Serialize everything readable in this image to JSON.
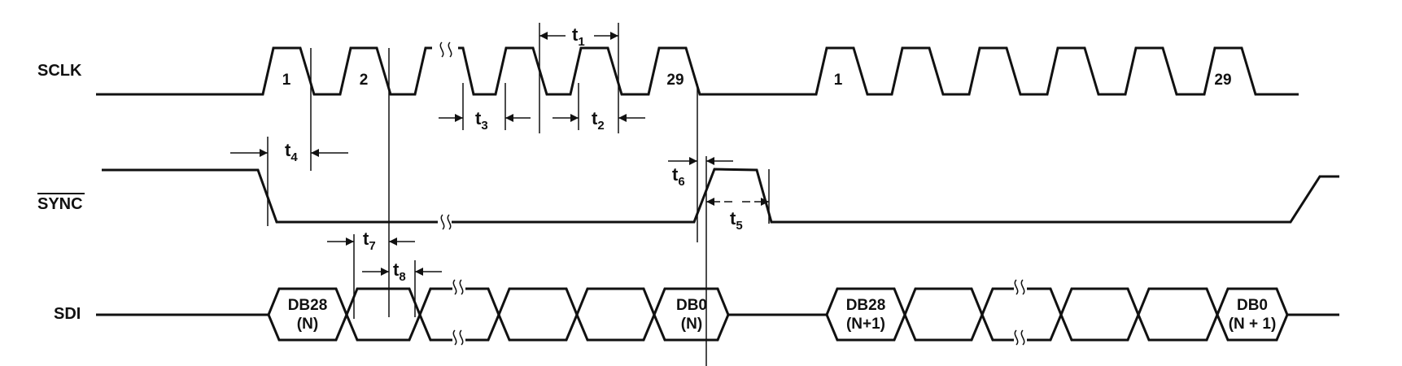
{
  "signals": {
    "sclk": "SCLK",
    "sync": "SYNC",
    "sdi": "SDI"
  },
  "clock_labels": {
    "first_1": "1",
    "first_2": "2",
    "first_29": "29",
    "second_1": "1",
    "second_29": "29"
  },
  "timing": {
    "t1": {
      "base": "t",
      "sub": "1"
    },
    "t2": {
      "base": "t",
      "sub": "2"
    },
    "t3": {
      "base": "t",
      "sub": "3"
    },
    "t4": {
      "base": "t",
      "sub": "4"
    },
    "t5": {
      "base": "t",
      "sub": "5"
    },
    "t6": {
      "base": "t",
      "sub": "6"
    },
    "t7": {
      "base": "t",
      "sub": "7"
    },
    "t8": {
      "base": "t",
      "sub": "8"
    }
  },
  "data_cells": {
    "db28_n": {
      "line1": "DB28",
      "line2": "(N)"
    },
    "db0_n": {
      "line1": "DB0",
      "line2": "(N)"
    },
    "db28_n1": {
      "line1": "DB28",
      "line2": "(N+1)"
    },
    "db0_n1": {
      "line1": "DB0",
      "line2": "(N + 1)"
    }
  }
}
